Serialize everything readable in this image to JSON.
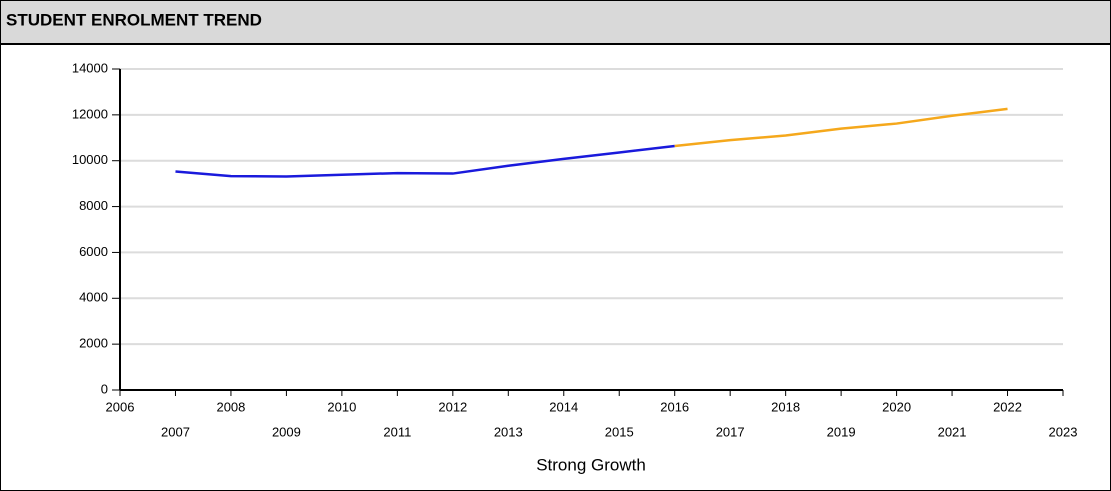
{
  "chart_data": {
    "type": "line",
    "title": "STUDENT ENROLMENT TREND",
    "x_label": "Strong Growth",
    "x": [
      2007,
      2008,
      2009,
      2010,
      2011,
      2012,
      2013,
      2014,
      2015,
      2016,
      2017,
      2018,
      2019,
      2020,
      2021,
      2022
    ],
    "series": [
      {
        "color": "#1a1adc",
        "values": [
          9530,
          9330,
          9310,
          9390,
          9460,
          9440,
          9780,
          10080,
          10360,
          10640,
          null,
          null,
          null,
          null,
          null,
          null
        ]
      },
      {
        "color": "#f5a81c",
        "values": [
          null,
          null,
          null,
          null,
          null,
          null,
          null,
          null,
          null,
          10640,
          10900,
          11100,
          11400,
          11620,
          11960,
          12260
        ]
      }
    ],
    "xlim": [
      2006,
      2023
    ],
    "xticks": [
      2006,
      2007,
      2008,
      2009,
      2010,
      2011,
      2012,
      2013,
      2014,
      2015,
      2016,
      2017,
      2018,
      2019,
      2020,
      2021,
      2022,
      2023
    ],
    "ylim": [
      0,
      14000
    ],
    "yticks": [
      0,
      2000,
      4000,
      6000,
      8000,
      10000,
      12000,
      14000
    ],
    "grid": true
  }
}
